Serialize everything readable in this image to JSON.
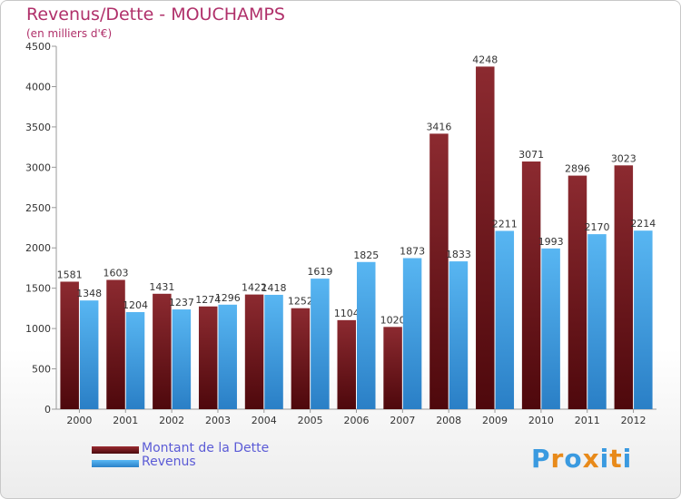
{
  "header": {
    "title": "Revenus/Dette - MOUCHAMPS",
    "subtitle": "(en milliers d'€)"
  },
  "chart_data": {
    "type": "bar",
    "categories": [
      "2000",
      "2001",
      "2002",
      "2003",
      "2004",
      "2005",
      "2006",
      "2007",
      "2008",
      "2009",
      "2010",
      "2011",
      "2012"
    ],
    "series": [
      {
        "name": "Montant de la Dette",
        "color": "#7a1a1f",
        "values": [
          1581,
          1603,
          1431,
          1274,
          1422,
          1252,
          1104,
          1020,
          3416,
          4248,
          3071,
          2896,
          3023
        ]
      },
      {
        "name": "Revenus",
        "color": "#3a9ae0",
        "values": [
          1348,
          1204,
          1237,
          1296,
          1418,
          1619,
          1825,
          1873,
          1833,
          2211,
          1993,
          2170,
          2214
        ]
      }
    ],
    "yticks": [
      0,
      500,
      1000,
      1500,
      2000,
      2500,
      3000,
      3500,
      4000,
      4500
    ],
    "ylim": [
      0,
      4500
    ],
    "grid": false,
    "legend_position": "bottom-left"
  },
  "logo": {
    "text": "Proxiti",
    "letter_colors": [
      "#3a9ae0",
      "#e88a1a",
      "#3a9ae0",
      "#e88a1a",
      "#3a9ae0",
      "#e88a1a",
      "#3a9ae0"
    ]
  }
}
